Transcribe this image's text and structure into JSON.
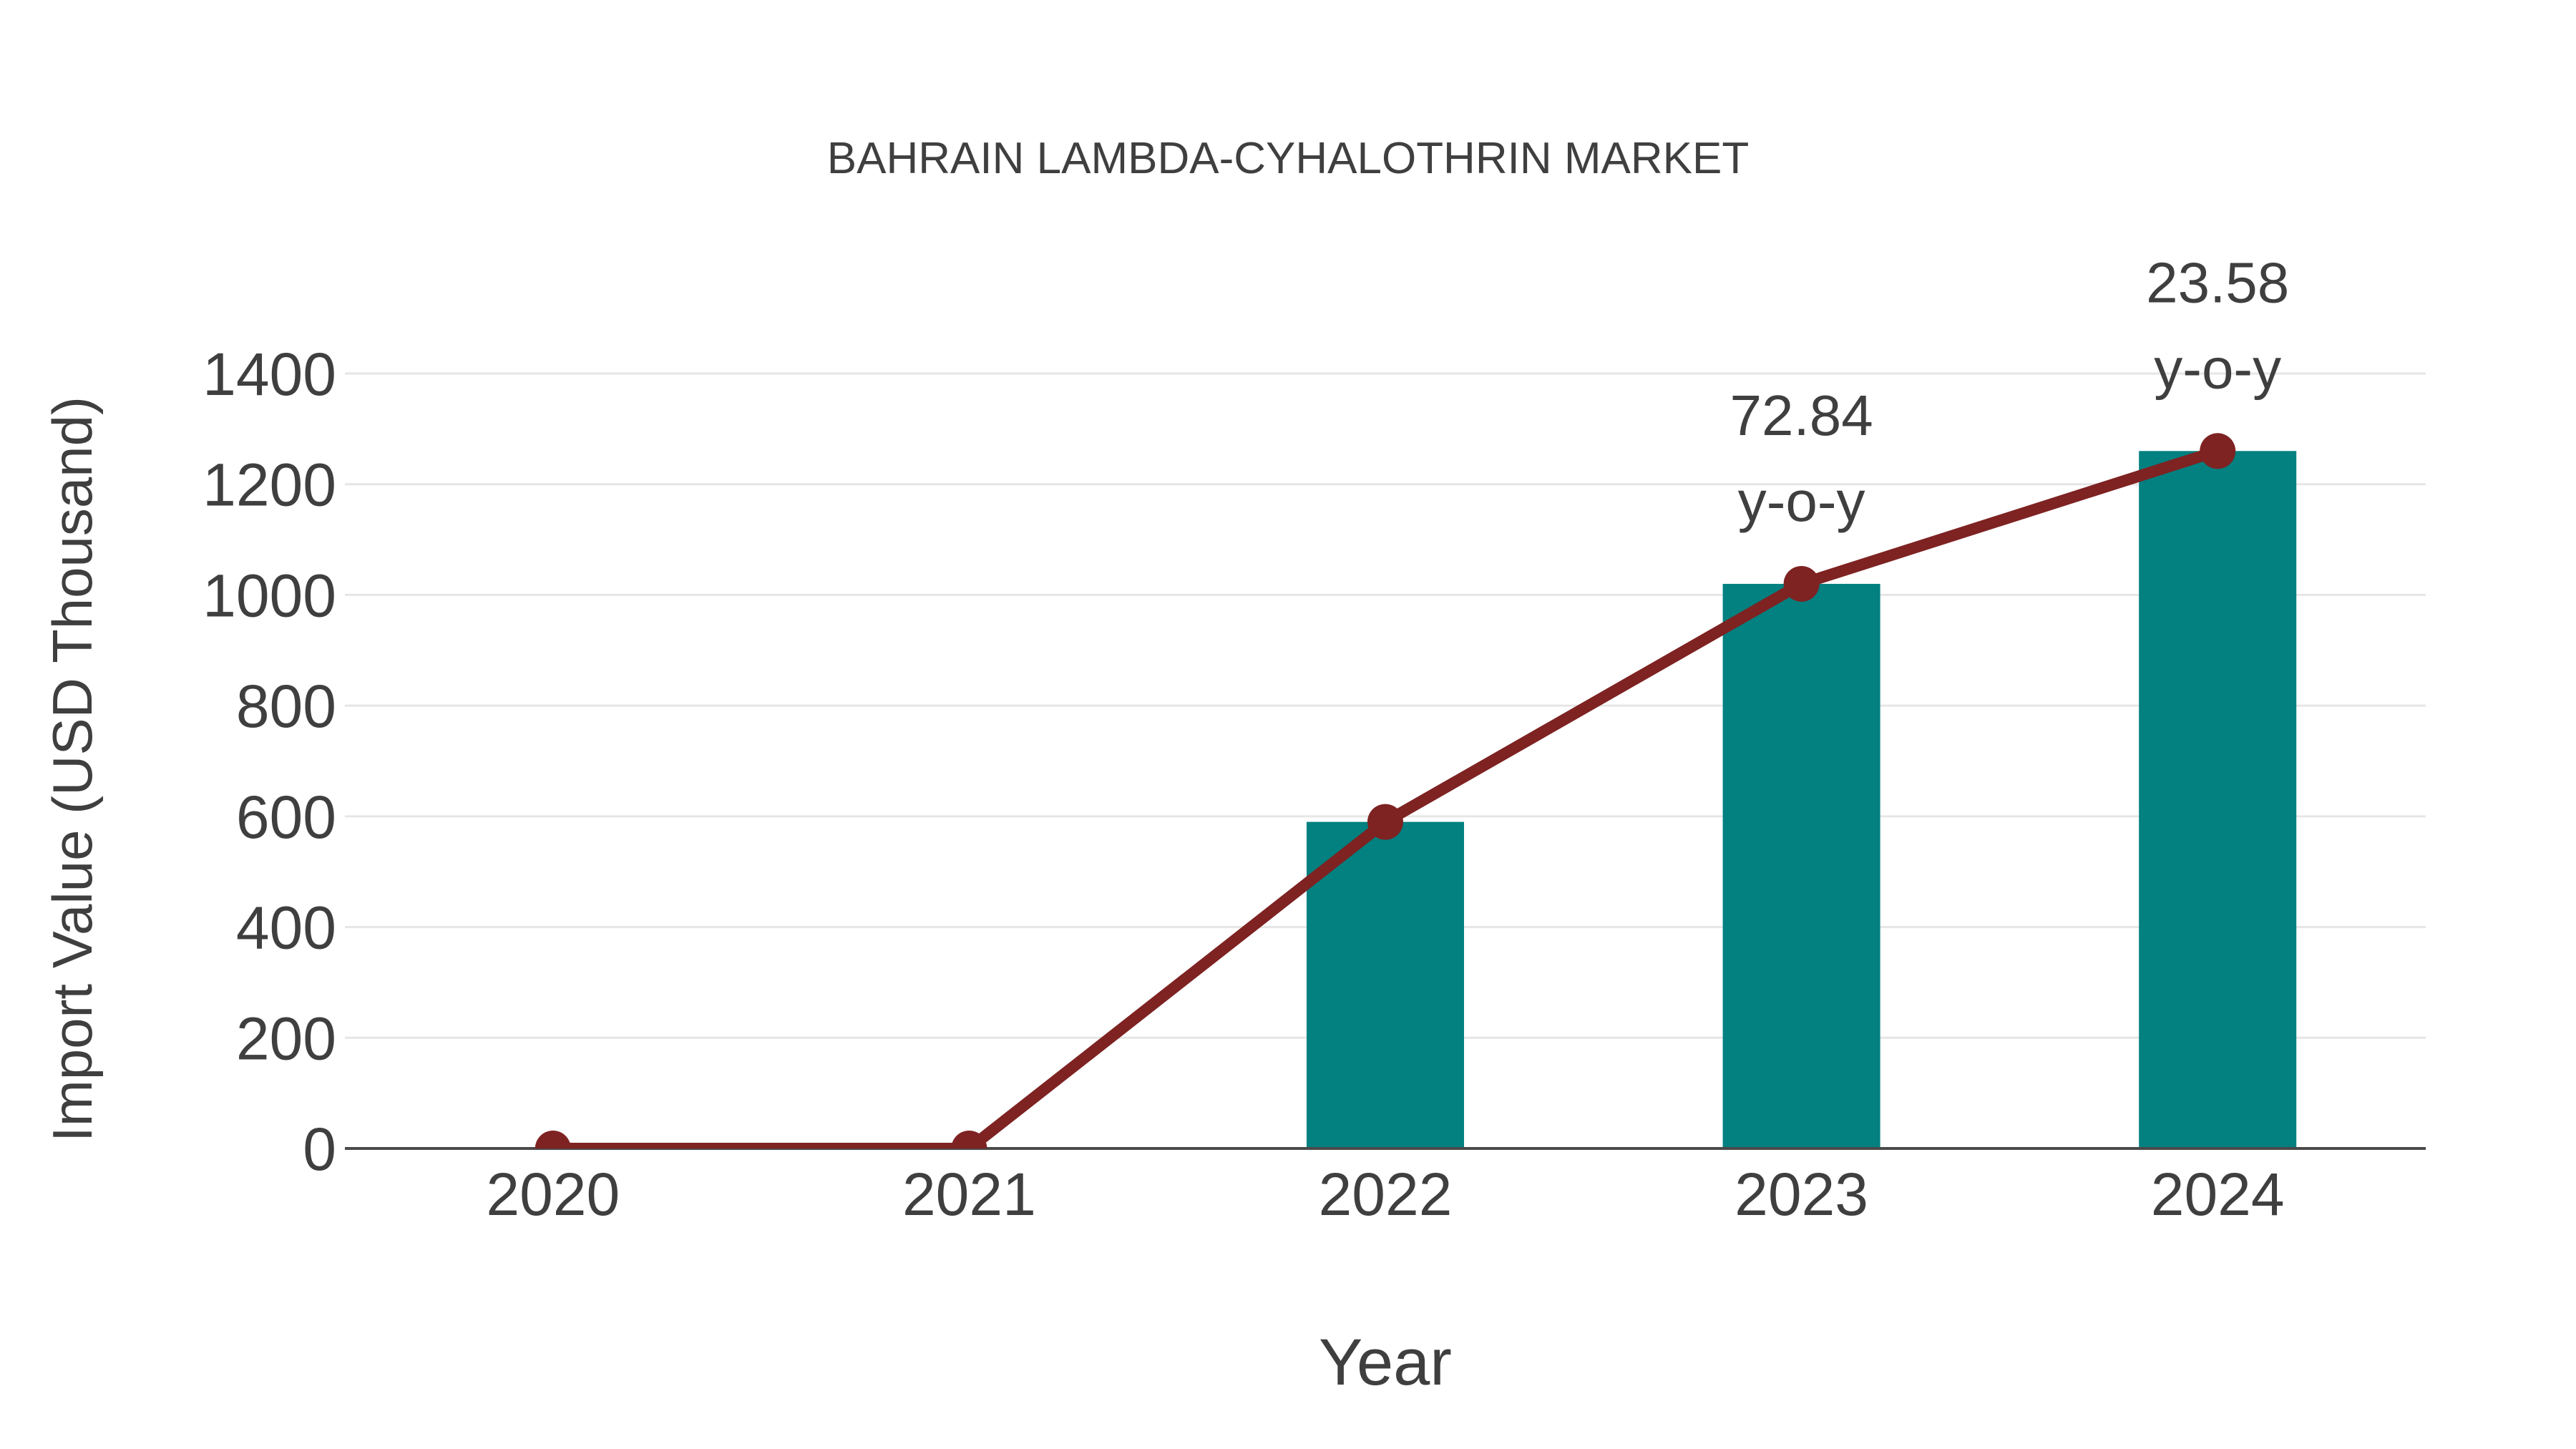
{
  "chart_data": {
    "type": "bar+line",
    "title": "BAHRAIN LAMBDA-CYHALOTHRIN MARKET",
    "xlabel": "Year",
    "ylabel": "Import Value (USD Thousand)",
    "categories": [
      "2020",
      "2021",
      "2022",
      "2023",
      "2024"
    ],
    "series": [
      {
        "name": "Import Value bars",
        "type": "bar",
        "color": "#038080",
        "values": [
          0,
          0,
          590,
          1020,
          1260
        ]
      },
      {
        "name": "Import Value trend line",
        "type": "line",
        "color": "#7E2222",
        "values": [
          0,
          0,
          590,
          1020,
          1260
        ]
      }
    ],
    "annotations": [
      {
        "category": "2023",
        "lines": [
          "72.84",
          "y-o-y"
        ]
      },
      {
        "category": "2024",
        "lines": [
          "23.58",
          "y-o-y"
        ]
      }
    ],
    "y_axis": {
      "min": 0,
      "max": 1400,
      "tick_step": 200,
      "tick_labels": [
        "0",
        "200",
        "400",
        "600",
        "800",
        "1000",
        "1200",
        "1400"
      ]
    },
    "x_axis": {
      "tick_labels": [
        "2020",
        "2021",
        "2022",
        "2023",
        "2024"
      ]
    },
    "legend": false,
    "grid": true,
    "colors": {
      "text": "#3F3F3F",
      "grid": "#E6E6E6",
      "axis": "#4A4A4A",
      "background": "#FFFFFF"
    }
  }
}
